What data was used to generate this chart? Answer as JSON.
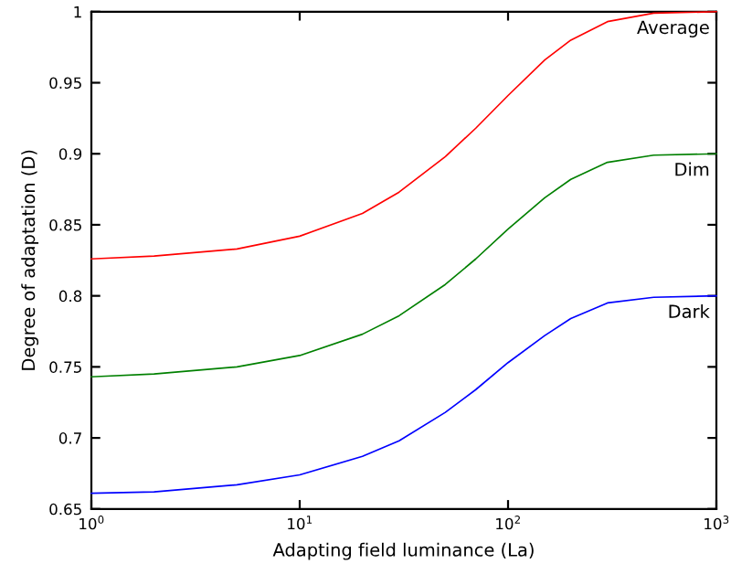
{
  "chart_data": {
    "type": "line",
    "xlabel": "Adapting field luminance (La)",
    "ylabel": "Degree of adaptation (D)",
    "x": [
      1,
      2,
      5,
      10,
      20,
      30,
      50,
      70,
      100,
      150,
      200,
      300,
      500,
      1000
    ],
    "series": [
      {
        "name": "Average",
        "color": "#ff0000",
        "values": [
          0.826,
          0.828,
          0.833,
          0.842,
          0.858,
          0.873,
          0.898,
          0.918,
          0.941,
          0.966,
          0.98,
          0.993,
          0.999,
          1.0
        ]
      },
      {
        "name": "Dim",
        "color": "#008000",
        "values": [
          0.743,
          0.745,
          0.75,
          0.758,
          0.773,
          0.786,
          0.808,
          0.826,
          0.847,
          0.869,
          0.882,
          0.894,
          0.899,
          0.9
        ]
      },
      {
        "name": "Dark",
        "color": "#0000ff",
        "values": [
          0.661,
          0.662,
          0.667,
          0.674,
          0.687,
          0.698,
          0.718,
          0.734,
          0.753,
          0.772,
          0.784,
          0.795,
          0.799,
          0.8
        ]
      }
    ],
    "log": "x",
    "xlim": [
      1,
      1000
    ],
    "xticks": [
      {
        "value": 1,
        "label": "10$^{0}$"
      },
      {
        "value": 10,
        "label": "10$^{1}$"
      },
      {
        "value": 100,
        "label": "10$^{2}$"
      },
      {
        "value": 1000,
        "label": "10$^{3}$"
      }
    ],
    "ylim": [
      0.65,
      1
    ],
    "yticks": [
      0.65,
      0.7,
      0.75,
      0.8,
      0.85,
      0.9,
      0.95,
      1
    ],
    "grid": false,
    "legend": false,
    "marker": "none",
    "line_style": "solid"
  }
}
